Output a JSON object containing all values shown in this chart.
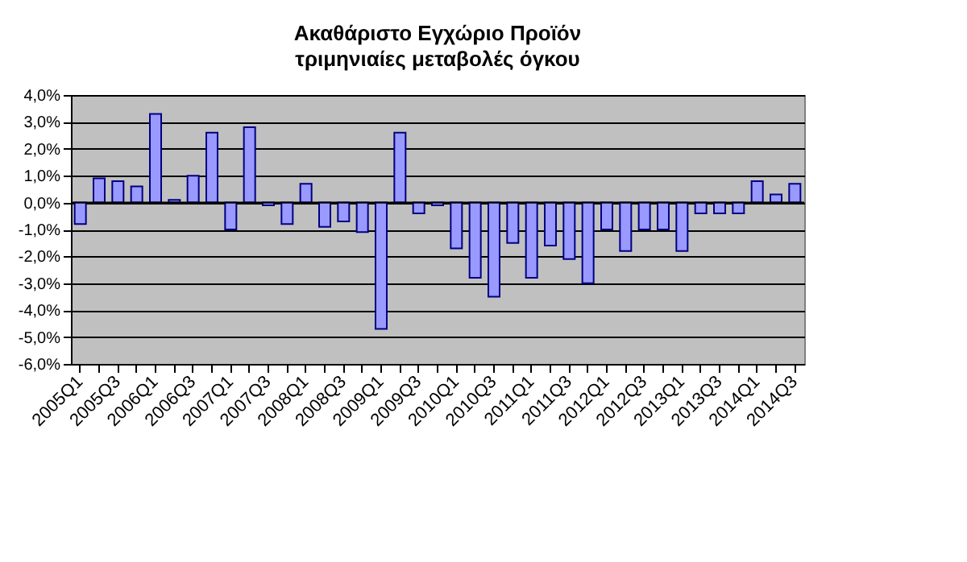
{
  "chart_data": {
    "type": "bar",
    "title": "Ακαθάριστο Εγχώριο Προϊόν",
    "subtitle": "τριμηνιαίες μεταβολές όγκου",
    "categories": [
      "2005Q1",
      null,
      "2005Q3",
      null,
      "2006Q1",
      null,
      "2006Q3",
      null,
      "2007Q1",
      null,
      "2007Q3",
      null,
      "2008Q1",
      null,
      "2008Q3",
      null,
      "2009Q1",
      null,
      "2009Q3",
      null,
      "2010Q1",
      null,
      "2010Q3",
      null,
      "2011Q1",
      null,
      "2011Q3",
      null,
      "2012Q1",
      null,
      "2012Q3",
      null,
      "2013Q1",
      null,
      "2013Q3",
      null,
      "2014Q1",
      null,
      "2014Q3"
    ],
    "values": [
      -0.8,
      0.9,
      0.8,
      0.6,
      3.3,
      0.1,
      1.0,
      2.6,
      -1.0,
      2.8,
      -0.1,
      -0.8,
      0.7,
      -0.9,
      -0.7,
      -1.1,
      -4.7,
      2.6,
      -0.4,
      -0.1,
      -1.7,
      -2.8,
      -3.5,
      -1.5,
      -2.8,
      -1.6,
      -2.1,
      -3.0,
      -1.0,
      -1.8,
      -1.0,
      -1.0,
      -1.8,
      -0.4,
      -0.4,
      -0.4,
      0.8,
      0.3,
      0.7
    ],
    "color": "#9999ff",
    "ylim": [
      -6,
      4
    ],
    "yticks": [
      {
        "value": -6,
        "label": "-6,0%"
      },
      {
        "value": -5,
        "label": "-5,0%"
      },
      {
        "value": -4,
        "label": "-4,0%"
      },
      {
        "value": -3,
        "label": "-3,0%"
      },
      {
        "value": -2,
        "label": "-2,0%"
      },
      {
        "value": -1,
        "label": "-1,0%"
      },
      {
        "value": 0,
        "label": "0,0%"
      },
      {
        "value": 1,
        "label": "1,0%"
      },
      {
        "value": 2,
        "label": "2,0%"
      },
      {
        "value": 3,
        "label": "3,0%"
      },
      {
        "value": 4,
        "label": "4,0%"
      }
    ],
    "grid": "y"
  }
}
